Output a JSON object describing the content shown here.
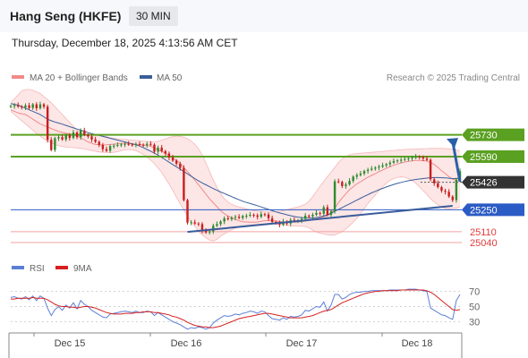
{
  "header": {
    "instrument": "Hang Seng (HKFE)",
    "timeframe": "30 MIN",
    "datetime": "Thursday, December 18, 2025 4:13:56 AM CET"
  },
  "legend": {
    "ma20_label": "MA 20 + Bollinger Bands",
    "ma50_label": "MA 50",
    "credit": "Research © 2025 Trading Central",
    "rsi_label": "RSI",
    "rsi_ma_label": "9MA"
  },
  "colors": {
    "ma20": "#f08a8a",
    "ma50": "#3a5f9a",
    "bollinger_fill": "#fde2e2",
    "resistance": "#5aa021",
    "support": "#2b5bc4",
    "pivot_tag": "#333333",
    "minor_support": "#e23b3b",
    "candle_up": "#2e8b2e",
    "candle_down": "#c81e1e",
    "trend_arrow": "#2a5fa8",
    "rsi": "#5b7fd6",
    "rsi_ma": "#d62020"
  },
  "chart_data": {
    "type": "candlestick",
    "ylim": [
      24960,
      26020
    ],
    "x_ticks": [
      "Dec 15",
      "Dec 16",
      "Dec 17",
      "Dec 18"
    ],
    "levels": [
      {
        "value": 25730,
        "label": "25730",
        "kind": "resistance"
      },
      {
        "value": 25590,
        "label": "25590",
        "kind": "resistance"
      },
      {
        "value": 25426,
        "label": "25426",
        "kind": "pivot"
      },
      {
        "value": 25250,
        "label": "25250",
        "kind": "support"
      },
      {
        "value": 25110,
        "label": "25110",
        "kind": "minor-support"
      },
      {
        "value": 25040,
        "label": "25040",
        "kind": "minor-support"
      }
    ],
    "close": [
      25914,
      25920,
      25911,
      25905,
      25918,
      25902,
      25925,
      25900,
      25925,
      25910,
      25698,
      25633,
      25708,
      25715,
      25700,
      25728,
      25710,
      25745,
      25715,
      25758,
      25730,
      25720,
      25700,
      25685,
      25665,
      25638,
      25628,
      25658,
      25660,
      25665,
      25668,
      25672,
      25668,
      25667,
      25670,
      25666,
      25665,
      25672,
      25667,
      25622,
      25648,
      25625,
      25610,
      25585,
      25565,
      25545,
      25518,
      25312,
      25168,
      25170,
      25162,
      25158,
      25115,
      25105,
      25112,
      25148,
      25158,
      25175,
      25195,
      25190,
      25200,
      25205,
      25198,
      25210,
      25212,
      25218,
      25214,
      25205,
      25222,
      25220,
      25196,
      25172,
      25168,
      25155,
      25175,
      25162,
      25185,
      25178,
      25182,
      25192,
      25212,
      25208,
      25218,
      25230,
      25225,
      25266,
      25218,
      25242,
      25432,
      25428,
      25402,
      25412,
      25435,
      25462,
      25472,
      25482,
      25498,
      25506,
      25513,
      25520,
      25526,
      25534,
      25542,
      25552,
      25562,
      25566,
      25570,
      25575,
      25580,
      25583,
      25590,
      25585,
      25578,
      25570,
      25445,
      25420,
      25395,
      25372,
      25365,
      25335,
      25312,
      25442,
      25497
    ],
    "ma20": [
      25890,
      25880,
      25870,
      25865,
      25860,
      25845,
      25830,
      25815,
      25800,
      25790,
      25780,
      25770,
      25760,
      25752,
      25745,
      25740,
      25735,
      25730,
      25722,
      25712,
      25698,
      25685,
      25675,
      25668,
      25666,
      25665,
      25666,
      25668,
      25670,
      25672,
      25674,
      25676,
      25675,
      25672,
      25670,
      25668,
      25665,
      25662,
      25658,
      25645,
      25635,
      25625,
      25612,
      25598,
      25582,
      25565,
      25548,
      25520,
      25495,
      25468,
      25440,
      25410,
      25380,
      25350,
      25320,
      25295,
      25270,
      25245,
      25225,
      25210,
      25198,
      25188,
      25180,
      25174,
      25172,
      25170,
      25170,
      25172,
      25176,
      25180,
      25182,
      25180,
      25178,
      25175,
      25172,
      25170,
      25170,
      25170,
      25172,
      25175,
      25178,
      25182,
      25186,
      25192,
      25198,
      25205,
      25212,
      25225,
      25260,
      25295,
      25325,
      25352,
      25378,
      25398,
      25416,
      25430,
      25445,
      25458,
      25470,
      25482,
      25494,
      25505,
      25515,
      25525,
      25535,
      25543,
      25550,
      25556,
      25560,
      25563,
      25566,
      25566,
      25565,
      25562,
      25552,
      25540,
      25522,
      25500,
      25482,
      25462,
      25445,
      25440,
      25442
    ],
    "ma50": [
      25930,
      25925,
      25920,
      25910,
      25900,
      25890,
      25880,
      25870,
      25860,
      25845,
      25830,
      25820,
      25812,
      25805,
      25798,
      25790,
      25782,
      25774,
      25767,
      25760,
      25752,
      25744,
      25738,
      25732,
      25726,
      25720,
      25714,
      25708,
      25702,
      25696,
      25690,
      25684,
      25678,
      25672,
      25666,
      25658,
      25648,
      25636,
      25625,
      25612,
      25600,
      25585,
      25570,
      25555,
      25540,
      25525,
      25510,
      25495,
      25480,
      25465,
      25450,
      25435,
      25422,
      25410,
      25398,
      25386,
      25375,
      25364,
      25354,
      25344,
      25334,
      25324,
      25314,
      25305,
      25297,
      25290,
      25283,
      25276,
      25268,
      25260,
      25252,
      25244,
      25237,
      25230,
      25224,
      25218,
      25212,
      25207,
      25203,
      25200,
      25198,
      25197,
      25198,
      25200,
      25204,
      25210,
      25218,
      25228,
      25240,
      25252,
      25264,
      25276,
      25288,
      25300,
      25312,
      25324,
      25336,
      25347,
      25358,
      25368,
      25378,
      25387,
      25396,
      25404,
      25412,
      25419,
      25425,
      25431,
      25436,
      25440,
      25444,
      25447,
      25450,
      25453,
      25455,
      25456,
      25456,
      25455,
      25454,
      25452,
      25450,
      25450,
      25452
    ],
    "bollinger_upper": [
      25935,
      25960,
      25985,
      26010,
      26020,
      26020,
      26015,
      26005,
      25995,
      25975,
      25955,
      25935,
      25910,
      25885,
      25860,
      25835,
      25810,
      25785,
      25760,
      25745,
      25735,
      25730,
      25728,
      25726,
      25724,
      25722,
      25718,
      25712,
      25708,
      25705,
      25702,
      25700,
      25698,
      25696,
      25694,
      25692,
      25690,
      25688,
      25686,
      25684,
      25688,
      25696,
      25704,
      25712,
      25718,
      25722,
      25720,
      25715,
      25705,
      25690,
      25670,
      25640,
      25600,
      25550,
      25495,
      25440,
      25395,
      25355,
      25320,
      25300,
      25285,
      25275,
      25268,
      25262,
      25256,
      25250,
      25245,
      25242,
      25240,
      25238,
      25236,
      25236,
      25238,
      25240,
      25245,
      25250,
      25256,
      25262,
      25268,
      25276,
      25285,
      25305,
      25335,
      25368,
      25400,
      25432,
      25462,
      25492,
      25522,
      25552,
      25576,
      25592,
      25602,
      25608,
      25610,
      25612,
      25614,
      25616,
      25618,
      25620,
      25622,
      25624,
      25626,
      25628,
      25630,
      25632,
      25634,
      25636,
      25637,
      25638,
      25639,
      25640,
      25641,
      25642,
      25643,
      25643,
      25643,
      25643,
      25642,
      25640,
      25636,
      25632,
      25628
    ],
    "bollinger_lower": [
      25880,
      25860,
      25840,
      25820,
      25800,
      25780,
      25760,
      25740,
      25722,
      25705,
      25690,
      25678,
      25668,
      25660,
      25655,
      25652,
      25650,
      25648,
      25646,
      25643,
      25639,
      25634,
      25629,
      25625,
      25620,
      25618,
      25617,
      25616,
      25618,
      25622,
      25628,
      25634,
      25636,
      25634,
      25628,
      25618,
      25604,
      25588,
      25568,
      25545,
      25518,
      25488,
      25452,
      25415,
      25375,
      25330,
      25290,
      25250,
      25210,
      25172,
      25145,
      25112,
      25090,
      25070,
      25055,
      25050,
      25060,
      25080,
      25095,
      25110,
      25122,
      25132,
      25140,
      25145,
      25150,
      25152,
      25155,
      25156,
      25158,
      25160,
      25162,
      25160,
      25158,
      25155,
      25152,
      25150,
      25148,
      25146,
      25145,
      25144,
      25143,
      25135,
      25120,
      25108,
      25100,
      25095,
      25090,
      25088,
      25090,
      25098,
      25110,
      25128,
      25148,
      25170,
      25195,
      25225,
      25258,
      25290,
      25318,
      25345,
      25372,
      25398,
      25420,
      25438,
      25450,
      25458,
      25460,
      25458,
      25450,
      25438,
      25420,
      25398,
      25372,
      25348,
      25322,
      25300,
      25282,
      25268,
      25258,
      25255,
      25258,
      25262,
      25268
    ],
    "trendline": [
      {
        "i": 48,
        "v": 25108
      },
      {
        "i": 120,
        "v": 25275
      }
    ],
    "forecast_arrow": {
      "from_i": 122,
      "from_v": 25430,
      "to_v": 25710
    },
    "rsi": {
      "ylim": [
        15,
        85
      ],
      "ticks": [
        30,
        50,
        70
      ],
      "values": [
        62,
        63,
        61,
        60,
        63,
        59,
        64,
        58,
        64,
        61,
        48,
        38,
        46,
        50,
        45,
        52,
        48,
        55,
        47,
        58,
        53,
        50,
        45,
        42,
        39,
        36,
        35,
        40,
        41,
        42,
        43,
        44,
        43,
        42,
        44,
        42,
        42,
        44,
        43,
        38,
        42,
        39,
        36,
        33,
        30,
        28,
        26,
        23,
        20,
        22,
        21,
        23,
        22,
        20,
        22,
        28,
        32,
        35,
        38,
        37,
        38,
        40,
        39,
        41,
        42,
        44,
        43,
        41,
        44,
        43,
        38,
        34,
        33,
        32,
        35,
        33,
        37,
        36,
        37,
        39,
        45,
        44,
        47,
        50,
        49,
        56,
        44,
        52,
        66,
        66,
        60,
        62,
        66,
        68,
        69,
        69,
        70,
        70,
        71,
        71,
        71,
        71,
        71,
        72,
        72,
        72,
        72,
        72,
        73,
        73,
        73,
        72,
        71,
        70,
        48,
        45,
        42,
        39,
        38,
        35,
        33,
        58,
        66
      ],
      "ma": [
        60,
        60,
        61,
        61,
        61,
        61,
        62,
        61,
        61,
        61,
        59,
        56,
        53,
        51,
        50,
        50,
        49,
        49,
        48,
        49,
        50,
        50,
        49,
        48,
        46,
        44,
        42,
        41,
        40,
        40,
        40,
        41,
        41,
        41,
        42,
        42,
        43,
        43,
        43,
        42,
        42,
        41,
        40,
        39,
        37,
        36,
        34,
        32,
        29,
        27,
        25,
        24,
        23,
        23,
        22,
        22,
        23,
        24,
        26,
        28,
        30,
        32,
        34,
        35,
        36,
        37,
        38,
        39,
        40,
        41,
        41,
        40,
        39,
        38,
        37,
        36,
        35,
        35,
        35,
        35,
        36,
        37,
        38,
        40,
        42,
        44,
        45,
        46,
        49,
        52,
        55,
        57,
        59,
        61,
        63,
        65,
        67,
        68,
        69,
        70,
        70,
        71,
        71,
        71,
        71,
        71,
        72,
        72,
        72,
        72,
        72,
        72,
        72,
        71,
        69,
        66,
        62,
        58,
        54,
        50,
        46,
        45,
        46
      ]
    }
  }
}
